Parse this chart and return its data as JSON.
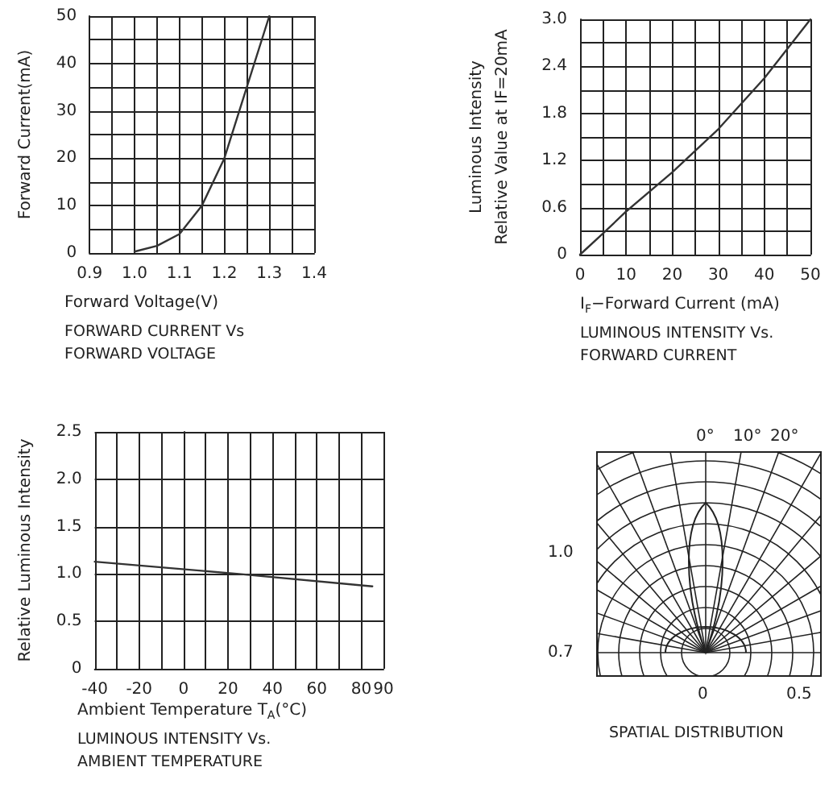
{
  "chart_data": [
    {
      "type": "line",
      "title": "FORWARD CURRENT Vs\nFORWARD VOLTAGE",
      "xlabel": "Forward Voltage(V)",
      "ylabel": "Forward Current(mA)",
      "x": [
        1.0,
        1.05,
        1.1,
        1.15,
        1.2,
        1.25,
        1.3
      ],
      "series": [
        {
          "color": "#333333",
          "values": [
            0.3,
            1.5,
            4,
            10,
            20,
            35,
            50
          ]
        }
      ],
      "xlim": [
        0.9,
        1.4
      ],
      "xticks": [
        0.9,
        {
          "value": 1,
          "label": "1.0"
        },
        1.1,
        1.2,
        1.3,
        1.4
      ],
      "ylim": [
        0,
        50
      ],
      "yticks": [
        0,
        10,
        20,
        30,
        40,
        50
      ],
      "grid": true,
      "marker": "none",
      "line_style": "solid"
    },
    {
      "type": "line",
      "title": "LUMINOUS INTENSITY Vs.\nFORWARD CURRENT",
      "xlabel": "I$_{F}$−Forward Current (mA)",
      "ylabel": "Luminous Intensity\nRelative Value at IF=20mA",
      "x": [
        0,
        5,
        10,
        20,
        30,
        40,
        50
      ],
      "series": [
        {
          "color": "#333333",
          "values": [
            0,
            0.27,
            0.55,
            1.05,
            1.6,
            2.25,
            3.0
          ]
        }
      ],
      "xlim": [
        0,
        50
      ],
      "xticks": [
        0,
        10,
        20,
        30,
        40,
        50
      ],
      "ylim": [
        0,
        3
      ],
      "yticks": [
        0,
        0.6,
        1.2,
        1.8,
        2.4,
        {
          "value": 3,
          "label": "3.0"
        }
      ],
      "grid": true,
      "marker": "none",
      "line_style": "solid"
    },
    {
      "type": "line",
      "title": "LUMINOUS INTENSITY Vs.\nAMBIENT TEMPERATURE",
      "xlabel": "Ambient Temperature T$_{A}$(°C)",
      "ylabel": "Relative Luminous Intensity",
      "x": [
        -40,
        25,
        85
      ],
      "series": [
        {
          "color": "#333333",
          "values": [
            1.13,
            1.0,
            0.87
          ]
        }
      ],
      "xlim": [
        -40,
        90
      ],
      "xticks": [
        -40,
        -20,
        0,
        20,
        40,
        60,
        80,
        90
      ],
      "ylim": [
        0,
        2.5
      ],
      "yticks": [
        0,
        0.5,
        {
          "value": 1,
          "label": "1.0"
        },
        1.5,
        {
          "value": 2,
          "label": "2.0"
        },
        2.5
      ],
      "grid": true,
      "marker": "none",
      "line_style": "solid"
    },
    {
      "type": "other",
      "title": "SPATIAL DISTRIBUTION",
      "annotations": [
        "0°",
        "10°",
        "20°",
        "1.0",
        "0.7",
        "0",
        "0.5"
      ]
    }
  ]
}
